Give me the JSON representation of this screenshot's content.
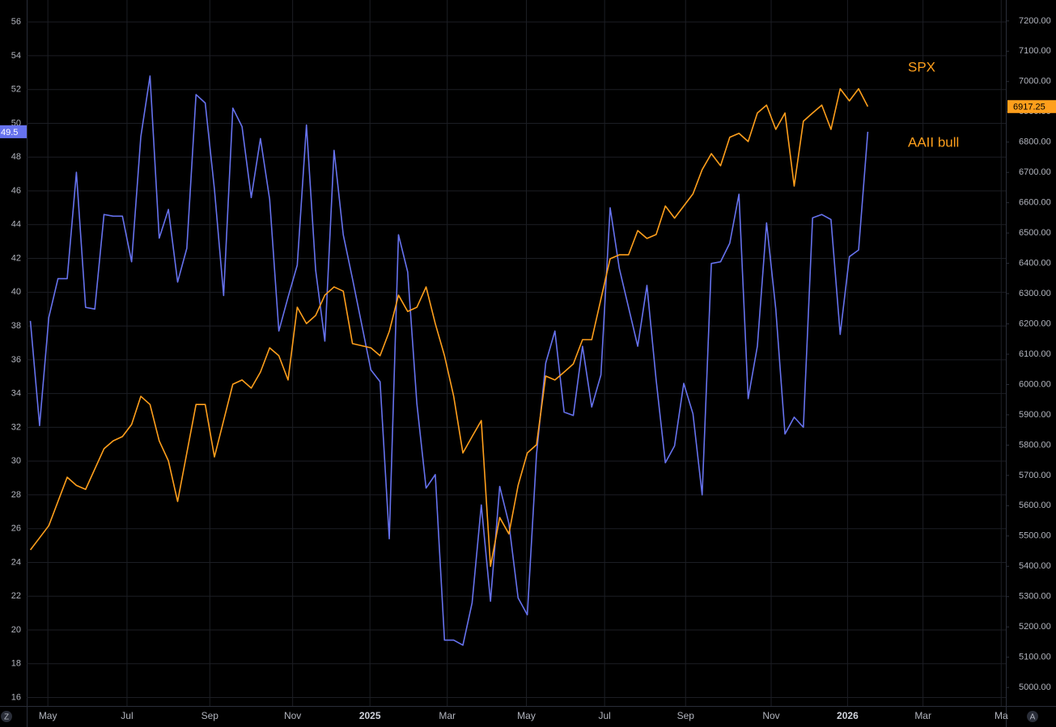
{
  "chart_data": {
    "type": "line",
    "x": [
      0,
      1,
      2,
      3,
      4,
      5,
      6,
      7,
      8,
      9,
      10,
      11,
      12,
      13,
      14,
      15,
      16,
      17,
      18,
      19,
      20,
      21,
      22,
      23,
      24,
      25,
      26,
      27,
      28,
      29,
      30,
      31,
      32,
      33,
      34,
      35,
      37,
      38,
      39,
      40,
      41,
      42,
      43,
      44,
      45,
      46,
      47,
      48,
      49,
      50,
      51,
      52,
      53,
      54,
      55,
      56,
      57,
      58,
      59,
      60,
      61,
      62,
      63,
      64,
      65,
      66,
      67,
      68,
      69,
      70,
      71,
      72,
      73,
      74,
      75,
      76,
      77,
      78,
      79,
      80,
      81,
      82,
      83,
      84,
      85,
      86,
      87,
      88,
      89,
      90,
      91
    ],
    "xlim": [
      -0.4,
      106
    ],
    "xticks": [
      {
        "value": 1.9,
        "label": "May"
      },
      {
        "value": 10.5,
        "label": "Jul"
      },
      {
        "value": 19.5,
        "label": "Sep"
      },
      {
        "value": 28.5,
        "label": "Nov"
      },
      {
        "value": 36.9,
        "label": "2025"
      },
      {
        "value": 45.3,
        "label": "Mar"
      },
      {
        "value": 53.9,
        "label": "May"
      },
      {
        "value": 62.4,
        "label": "Jul"
      },
      {
        "value": 71.2,
        "label": "Sep"
      },
      {
        "value": 80.5,
        "label": "Nov"
      },
      {
        "value": 88.8,
        "label": "2026"
      },
      {
        "value": 97.0,
        "label": "Mar"
      },
      {
        "value": 105.5,
        "label": "Ma"
      }
    ],
    "ylim": [
      15.5,
      57.3
    ],
    "yticks": [
      16,
      18,
      20,
      22,
      24,
      26,
      28,
      30,
      32,
      34,
      36,
      38,
      40,
      42,
      44,
      46,
      48,
      50,
      52,
      54,
      56
    ],
    "y2lim": [
      4939,
      7269
    ],
    "y2ticks": [
      {
        "value": 5000,
        "label": "5000.00"
      },
      {
        "value": 5100,
        "label": "5100.00"
      },
      {
        "value": 5200,
        "label": "5200.00"
      },
      {
        "value": 5300,
        "label": "5300.00"
      },
      {
        "value": 5400,
        "label": "5400.00"
      },
      {
        "value": 5500,
        "label": "5500.00"
      },
      {
        "value": 5600,
        "label": "5600.00"
      },
      {
        "value": 5700,
        "label": "5700.00"
      },
      {
        "value": 5800,
        "label": "5800.00"
      },
      {
        "value": 5900,
        "label": "5900.00"
      },
      {
        "value": 6000,
        "label": "6000.00"
      },
      {
        "value": 6100,
        "label": "6100.00"
      },
      {
        "value": 6200,
        "label": "6200.00"
      },
      {
        "value": 6300,
        "label": "6300.00"
      },
      {
        "value": 6400,
        "label": "6400.00"
      },
      {
        "value": 6500,
        "label": "6500.00"
      },
      {
        "value": 6600,
        "label": "6600.00"
      },
      {
        "value": 6700,
        "label": "6700.00"
      },
      {
        "value": 6800,
        "label": "6800.00"
      },
      {
        "value": 6900,
        "label": "6900.00"
      },
      {
        "value": 7000,
        "label": "7000.00"
      },
      {
        "value": 7100,
        "label": "7100.00"
      },
      {
        "value": 7200,
        "label": "7200.00"
      }
    ],
    "grid": true,
    "label_color": "#ff9f1c",
    "series": [
      {
        "name": "AAII bull",
        "color": "#6672ee",
        "axis": "y",
        "values": [
          38.3,
          32.1,
          38.5,
          40.8,
          40.8,
          47.1,
          39.1,
          39.0,
          44.6,
          44.5,
          44.5,
          41.8,
          49.2,
          52.8,
          43.2,
          44.9,
          40.6,
          42.6,
          51.7,
          51.2,
          46.1,
          39.8,
          50.9,
          49.8,
          45.6,
          49.1,
          45.5,
          37.7,
          39.7,
          41.6,
          49.9,
          41.3,
          37.1,
          48.4,
          43.4,
          40.8,
          35.4,
          34.7,
          25.4,
          43.4,
          41.2,
          33.4,
          28.4,
          29.2,
          19.4,
          19.4,
          19.1,
          21.6,
          27.4,
          21.7,
          28.5,
          26.3,
          21.9,
          20.9,
          30.4,
          35.8,
          37.7,
          32.9,
          32.7,
          36.8,
          33.2,
          35.1,
          45.0,
          41.4,
          39.1,
          36.8,
          40.4,
          34.8,
          29.9,
          30.9,
          34.6,
          32.8,
          28.0,
          41.7,
          41.8,
          42.9,
          45.8,
          33.7,
          36.8,
          44.1,
          39.0,
          31.6,
          32.6,
          32.0,
          44.4,
          44.6,
          44.3,
          37.5,
          42.1,
          42.5,
          49.5
        ]
      },
      {
        "name": "SPX",
        "color": "#ff9f1c",
        "axis": "y2",
        "values": [
          5454,
          5494,
          5534,
          5614,
          5694,
          5667,
          5654,
          5721,
          5788,
          5814,
          5828,
          5868,
          5961,
          5934,
          5814,
          5748,
          5614,
          5774,
          5934,
          5934,
          5761,
          5881,
          6001,
          6015,
          5988,
          6041,
          6121,
          6095,
          6015,
          6255,
          6201,
          6228,
          6295,
          6322,
          6308,
          6135,
          6121,
          6095,
          6175,
          6295,
          6241,
          6255,
          6322,
          6201,
          6095,
          5961,
          5774,
          5828,
          5881,
          5400,
          5561,
          5507,
          5667,
          5774,
          5801,
          6028,
          6015,
          6041,
          6068,
          6148,
          6148,
          6282,
          6415,
          6428,
          6428,
          6508,
          6482,
          6495,
          6589,
          6549,
          6589,
          6629,
          6709,
          6762,
          6722,
          6816,
          6829,
          6802,
          6896,
          6922,
          6842,
          6896,
          6655,
          6869,
          6896,
          6922,
          6842,
          6976,
          6936,
          6976,
          6917.25
        ]
      }
    ]
  },
  "ui": {
    "left_button": "Z",
    "right_button": "A"
  }
}
